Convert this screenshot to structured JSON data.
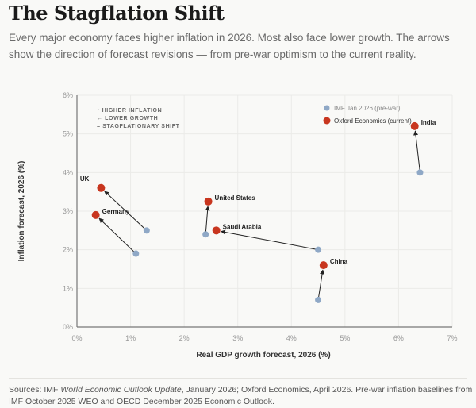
{
  "title": "The Stagflation Shift",
  "subtitle": "Every major economy faces higher inflation in 2026. Most also face lower growth. The arrows show the direction of forecast revisions — from pre-war optimism to the current reality.",
  "source": {
    "prefix": "Sources: IMF ",
    "italic": "World Economic Outlook Update",
    "suffix": ", January 2026; Oxford Economics, April 2026. Pre-war inflation baselines from IMF October 2025 WEO and OECD December 2025 Economic Outlook."
  },
  "chart_data": {
    "type": "scatter",
    "xlabel": "Real GDP growth forecast, 2026 (%)",
    "ylabel": "Inflation forecast, 2026 (%)",
    "xlim": [
      0,
      7
    ],
    "ylim": [
      0,
      6
    ],
    "xticks": [
      "0%",
      "1%",
      "2%",
      "3%",
      "4%",
      "5%",
      "6%",
      "7%"
    ],
    "yticks": [
      "0%",
      "1%",
      "2%",
      "3%",
      "4%",
      "5%",
      "6%"
    ],
    "grid": true,
    "legend_position": "top-right",
    "annotation": [
      "↑ HIGHER INFLATION",
      "← LOWER GROWTH",
      "= STAGFLATIONARY SHIFT"
    ],
    "series": [
      {
        "name": "IMF Jan 2026 (pre-war)",
        "color": "#8fa8c6"
      },
      {
        "name": "Oxford Economics (current)",
        "color": "#c8361f"
      }
    ],
    "points": [
      {
        "country": "UK",
        "pre": [
          1.3,
          2.5
        ],
        "current": [
          0.45,
          3.6
        ],
        "label_side": "above-left"
      },
      {
        "country": "Germany",
        "pre": [
          1.1,
          1.9
        ],
        "current": [
          0.35,
          2.9
        ],
        "label_side": "right"
      },
      {
        "country": "United States",
        "pre": [
          2.4,
          2.4
        ],
        "current": [
          2.45,
          3.25
        ],
        "label_side": "right"
      },
      {
        "country": "Saudi Arabia",
        "pre": [
          4.5,
          2.0
        ],
        "current": [
          2.6,
          2.5
        ],
        "label_side": "right"
      },
      {
        "country": "China",
        "pre": [
          4.5,
          0.7
        ],
        "current": [
          4.6,
          1.6
        ],
        "label_side": "right"
      },
      {
        "country": "India",
        "pre": [
          6.4,
          4.0
        ],
        "current": [
          6.3,
          5.2
        ],
        "label_side": "right"
      }
    ]
  }
}
